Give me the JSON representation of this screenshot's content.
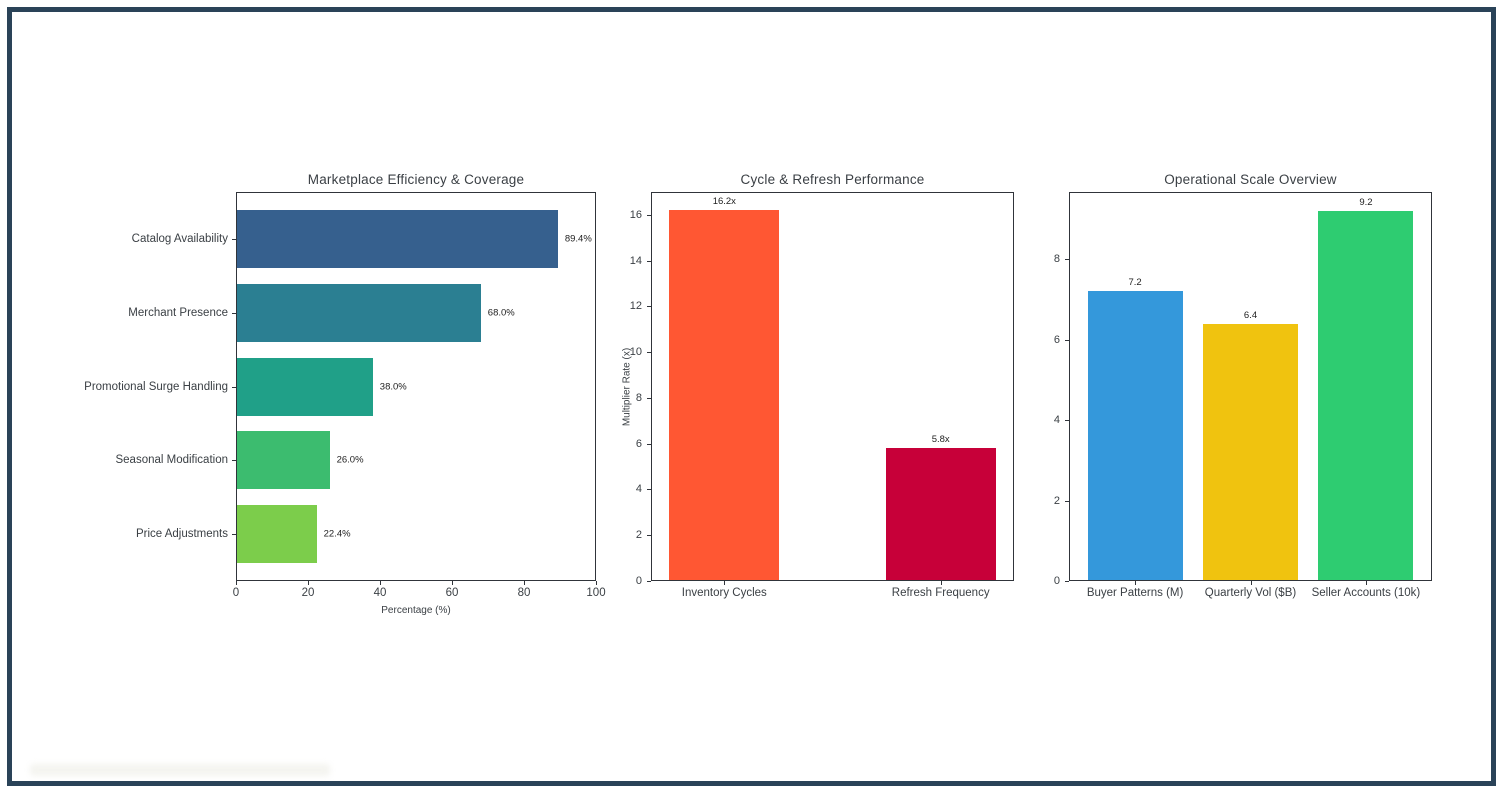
{
  "figure": {
    "background": "#ffffff",
    "frame_border_color": "#2A4358"
  },
  "chart_data": [
    {
      "type": "bar",
      "orientation": "horizontal",
      "title": "Marketplace Efficiency & Coverage",
      "xlabel": "Percentage (%)",
      "ylabel": "",
      "categories": [
        "Catalog Availability",
        "Merchant Presence",
        "Promotional Surge Handling",
        "Seasonal Modification",
        "Price Adjustments"
      ],
      "values": [
        89.4,
        68.0,
        38.0,
        26.0,
        22.4
      ],
      "value_labels": [
        "89.4%",
        "68.0%",
        "38.0%",
        "26.0%",
        "22.4%"
      ],
      "bar_colors": [
        "#36608E",
        "#2B7F92",
        "#20A088",
        "#3CBC6F",
        "#7CCD4B"
      ],
      "xlim": [
        0,
        100
      ],
      "xticks": [
        0,
        20,
        40,
        60,
        80,
        100
      ],
      "grid": false,
      "legend": null
    },
    {
      "type": "bar",
      "orientation": "vertical",
      "title": "Cycle & Refresh Performance",
      "xlabel": "",
      "ylabel": "Multiplier Rate (x)",
      "categories": [
        "Inventory Cycles",
        "Refresh Frequency"
      ],
      "values": [
        16.2,
        5.8
      ],
      "value_labels": [
        "16.2x",
        "5.8x"
      ],
      "bar_colors": [
        "#FF5733",
        "#C70039"
      ],
      "ylim": [
        0,
        17
      ],
      "yticks": [
        0,
        2,
        4,
        6,
        8,
        10,
        12,
        14,
        16
      ],
      "grid": false,
      "legend": null
    },
    {
      "type": "bar",
      "orientation": "vertical",
      "title": "Operational Scale Overview",
      "xlabel": "",
      "ylabel": "",
      "categories": [
        "Buyer Patterns (M)",
        "Quarterly Vol ($B)",
        "Seller Accounts (10k)"
      ],
      "values": [
        7.2,
        6.4,
        9.2
      ],
      "value_labels": [
        "7.2",
        "6.4",
        "9.2"
      ],
      "bar_colors": [
        "#3498DB",
        "#F0C30F",
        "#2ECC71"
      ],
      "ylim": [
        0,
        9.67
      ],
      "yticks": [
        0,
        2,
        4,
        6,
        8
      ],
      "grid": false,
      "legend": null
    }
  ]
}
